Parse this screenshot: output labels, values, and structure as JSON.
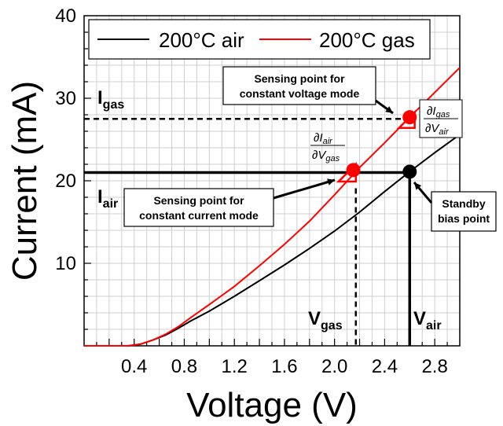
{
  "chart_data": {
    "type": "line",
    "xlabel": "Voltage (V)",
    "ylabel": "Current (mA)",
    "xlim": [
      0,
      3.0
    ],
    "ylim": [
      0,
      40
    ],
    "xticks": [
      "0.4",
      "0.8",
      "1.2",
      "1.6",
      "2.0",
      "2.4",
      "2.8"
    ],
    "yticks": [
      "10",
      "20",
      "30",
      "40"
    ],
    "grid": true,
    "legend_position": "top",
    "series": [
      {
        "name": "200°C air",
        "color": "#000000",
        "x": [
          0.0,
          0.35,
          0.45,
          0.55,
          0.65,
          0.75,
          0.85,
          1.0,
          1.2,
          1.4,
          1.6,
          1.8,
          2.0,
          2.2,
          2.4,
          2.6,
          2.8,
          3.0
        ],
        "y": [
          0.0,
          0.0,
          0.2,
          0.7,
          1.3,
          2.1,
          3.0,
          4.2,
          6.0,
          7.9,
          9.8,
          11.8,
          13.9,
          16.2,
          18.7,
          21.1,
          23.4,
          25.6
        ]
      },
      {
        "name": "200°C gas",
        "color": "#ff0000",
        "x": [
          0.0,
          0.35,
          0.45,
          0.55,
          0.65,
          0.75,
          0.85,
          1.0,
          1.2,
          1.4,
          1.6,
          1.8,
          2.0,
          2.2,
          2.4,
          2.6,
          2.8,
          3.0
        ],
        "y": [
          0.0,
          0.0,
          0.2,
          0.7,
          1.4,
          2.3,
          3.4,
          5.0,
          7.2,
          9.7,
          12.3,
          15.1,
          18.3,
          21.6,
          24.6,
          27.7,
          30.7,
          33.7
        ]
      }
    ],
    "reference_lines": {
      "I_air": 21.0,
      "I_gas": 27.5,
      "V_gas": 2.17,
      "V_air": 2.6
    },
    "points": [
      {
        "name": "gas-point-constant-current",
        "x": 2.15,
        "y": 21.3,
        "color": "#ff0000"
      },
      {
        "name": "gas-point-constant-voltage",
        "x": 2.6,
        "y": 27.7,
        "color": "#ff0000"
      },
      {
        "name": "standby-bias-point",
        "x": 2.6,
        "y": 21.1,
        "color": "#000000"
      }
    ],
    "labels": {
      "i_gas": {
        "main": "I",
        "sub": "gas"
      },
      "i_air": {
        "main": "I",
        "sub": "air"
      },
      "v_gas": {
        "main": "V",
        "sub": "gas"
      },
      "v_air": {
        "main": "V",
        "sub": "air"
      },
      "ann_voltage_mode": [
        "Sensing point for",
        "constant voltage mode"
      ],
      "ann_current_mode": [
        "Sensing point for",
        "constant current mode"
      ],
      "ann_standby": [
        "Standby",
        "bias point"
      ],
      "frac_left": {
        "num": "∂I",
        "num_sub": "air",
        "den": "∂V",
        "den_sub": "gas"
      },
      "frac_right": {
        "num": "∂I",
        "num_sub": "gas",
        "den": "∂V",
        "den_sub": "air"
      }
    }
  }
}
